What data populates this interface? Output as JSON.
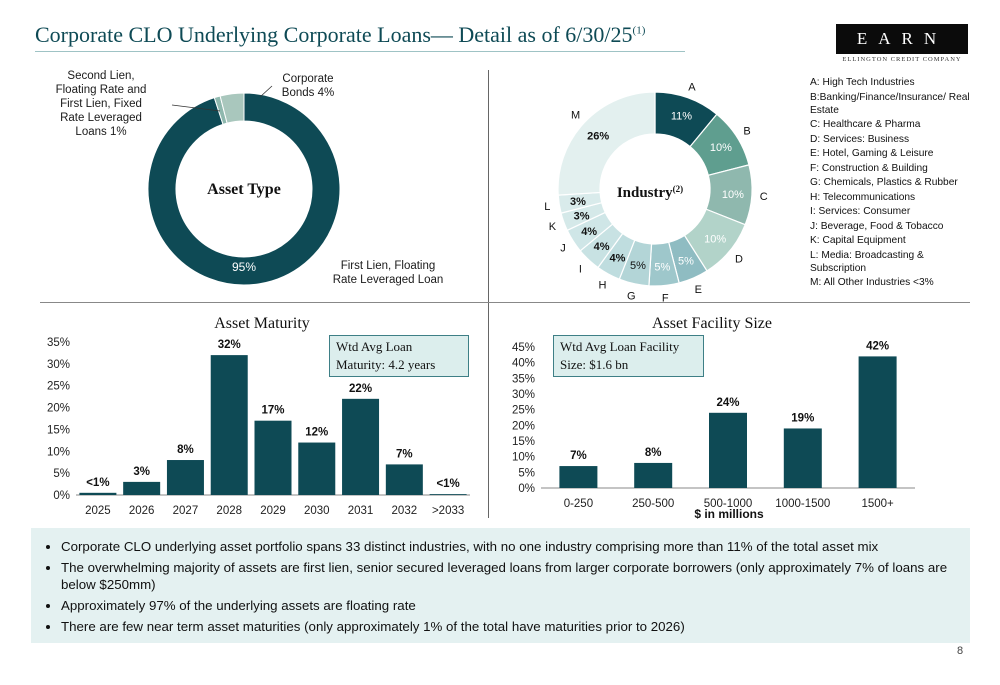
{
  "header": {
    "title": "Corporate CLO Underlying Corporate Loans— Detail as of 6/30/25",
    "title_sup": "(1)",
    "logo_text": "EARN",
    "logo_tagline": "ELLINGTON CREDIT COMPANY"
  },
  "colors": {
    "dark_teal": "#0e4a55",
    "accent_line": "#9fc3c5",
    "panel_bg": "#e4f1f1"
  },
  "chart_data": [
    {
      "type": "pie",
      "title": "Asset Type",
      "slices": [
        {
          "label": "First Lien, Floating Rate Leveraged Loan",
          "value": 95,
          "display": "95%",
          "color": "#0e4a55"
        },
        {
          "label": "Second Lien, Floating Rate and First Lien, Fixed Rate Leveraged Loans",
          "value": 1,
          "display": "1%",
          "color": "#8fb8ae"
        },
        {
          "label": "Corporate Bonds",
          "value": 4,
          "display": "4%",
          "color": "#a9c7bd"
        }
      ],
      "external_labels": {
        "first_lien": "First Lien, Floating Rate Leveraged Loan",
        "second_lien": "Second Lien, Floating Rate and First Lien, Fixed Rate Leveraged Loans 1%",
        "corporate_bonds": "Corporate Bonds 4%"
      }
    },
    {
      "type": "pie",
      "title": "Industry",
      "title_sup": "(2)",
      "slices": [
        {
          "letter": "A",
          "value": 11,
          "display": "11%",
          "color": "#0e4a55"
        },
        {
          "letter": "B",
          "value": 10,
          "display": "10%",
          "color": "#5f9e8f"
        },
        {
          "letter": "C",
          "value": 10,
          "display": "10%",
          "color": "#8fb8ae"
        },
        {
          "letter": "D",
          "value": 10,
          "display": "10%",
          "color": "#b2d3c9"
        },
        {
          "letter": "E",
          "value": 5,
          "display": "5%",
          "color": "#8fbcc2"
        },
        {
          "letter": "F",
          "value": 5,
          "display": "5%",
          "color": "#9ec7cb"
        },
        {
          "letter": "G",
          "value": 5,
          "display": "5%",
          "color": "#b3d5d7"
        },
        {
          "letter": "H",
          "value": 4,
          "display": "4%",
          "color": "#bfdddf"
        },
        {
          "letter": "I",
          "value": 4,
          "display": "4%",
          "color": "#c8e2e3"
        },
        {
          "letter": "J",
          "value": 4,
          "display": "4%",
          "color": "#cfe6e7"
        },
        {
          "letter": "K",
          "value": 3,
          "display": "3%",
          "color": "#d5e9e9"
        },
        {
          "letter": "L",
          "value": 3,
          "display": "3%",
          "color": "#d9ebeb"
        },
        {
          "letter": "M",
          "value": 26,
          "display": "26%",
          "color": "#e3f0ef"
        }
      ],
      "legend": [
        "A: High Tech Industries",
        "B:Banking/Finance/Insurance/ Real Estate",
        "C: Healthcare & Pharma",
        "D: Services: Business",
        "E: Hotel, Gaming & Leisure",
        "F: Construction & Building",
        "G: Chemicals, Plastics & Rubber",
        "H: Telecommunications",
        "I: Services: Consumer",
        "J: Beverage, Food & Tobacco",
        "K: Capital Equipment",
        "L:  Media: Broadcasting & Subscription",
        "M: All Other Industries <3%"
      ]
    },
    {
      "type": "bar",
      "title": "Asset Maturity",
      "categories": [
        "2025",
        "2026",
        "2027",
        "2028",
        "2029",
        "2030",
        "2031",
        "2032",
        ">2033"
      ],
      "values": [
        0.5,
        3,
        8,
        32,
        17,
        12,
        22,
        7,
        0.2
      ],
      "data_labels": [
        "<1%",
        "3%",
        "8%",
        "32%",
        "17%",
        "12%",
        "22%",
        "7%",
        "<1%"
      ],
      "ylim": [
        0,
        35
      ],
      "yticks": [
        "0%",
        "5%",
        "10%",
        "15%",
        "20%",
        "25%",
        "30%",
        "35%"
      ],
      "annotation": "Wtd Avg Loan Maturity: 4.2 years",
      "annotation_line1": "Wtd Avg Loan",
      "annotation_line2": "Maturity: 4.2 years"
    },
    {
      "type": "bar",
      "title": "Asset Facility Size",
      "categories": [
        "0-250",
        "250-500",
        "500-1000",
        "1000-1500",
        "1500+"
      ],
      "values": [
        7,
        8,
        24,
        19,
        42
      ],
      "data_labels": [
        "7%",
        "8%",
        "24%",
        "19%",
        "42%"
      ],
      "ylim": [
        0,
        45
      ],
      "yticks": [
        "0%",
        "5%",
        "10%",
        "15%",
        "20%",
        "25%",
        "30%",
        "35%",
        "40%",
        "45%"
      ],
      "xlabel": "$ in millions",
      "annotation": "Wtd Avg Loan Facility Size: $1.6 bn",
      "annotation_line1": "Wtd Avg Loan Facility",
      "annotation_line2": "Size: $1.6 bn"
    }
  ],
  "notes": [
    "Corporate CLO underlying asset portfolio spans 33 distinct industries, with no one industry comprising more than 11% of the total asset mix",
    "The overwhelming majority of assets are first lien, senior secured leveraged loans from larger corporate borrowers (only approximately 7% of loans are below $250mm)",
    "Approximately 97% of the underlying assets are floating rate",
    "There are few near term asset maturities (only approximately 1% of the total have maturities prior to 2026)"
  ],
  "page_number": "8"
}
